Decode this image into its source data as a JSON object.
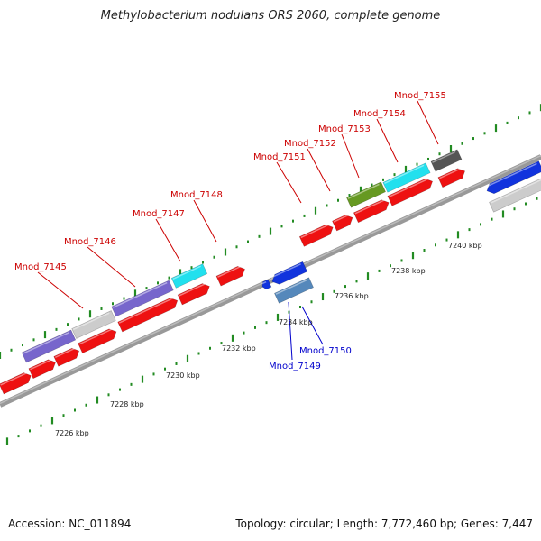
{
  "title": "Methylobacterium nodulans ORS 2060, complete genome",
  "footer": {
    "accession": "Accession: NC_011894",
    "summary": "Topology: circular; Length: 7,772,460 bp; Genes: 7,447"
  },
  "colors": {
    "forward_label": "#cc0000",
    "reverse_label": "#0000cc",
    "tick": "#228b22",
    "backbone": "#888888",
    "red": "#ee1111",
    "purple": "#7766cc",
    "light_gray": "#cccccc",
    "cyan": "#22e0ee",
    "olive": "#669922",
    "dark_gray": "#555555",
    "blue": "#1133dd",
    "steel": "#5588bb"
  },
  "scale_labels": [
    "7226 kbp",
    "7228 kbp",
    "7230 kbp",
    "7232 kbp",
    "7234 kbp",
    "7236 kbp",
    "7238 kbp",
    "7240 kbp"
  ],
  "gene_labels": [
    {
      "text": "Mnod_7145",
      "strand": "forward"
    },
    {
      "text": "Mnod_7146",
      "strand": "forward"
    },
    {
      "text": "Mnod_7147",
      "strand": "forward"
    },
    {
      "text": "Mnod_7148",
      "strand": "forward"
    },
    {
      "text": "Mnod_7151",
      "strand": "forward"
    },
    {
      "text": "Mnod_7152",
      "strand": "forward"
    },
    {
      "text": "Mnod_7153",
      "strand": "forward"
    },
    {
      "text": "Mnod_7154",
      "strand": "forward"
    },
    {
      "text": "Mnod_7155",
      "strand": "forward"
    },
    {
      "text": "Mnod_7149",
      "strand": "reverse"
    },
    {
      "text": "Mnod_7150",
      "strand": "reverse"
    }
  ]
}
